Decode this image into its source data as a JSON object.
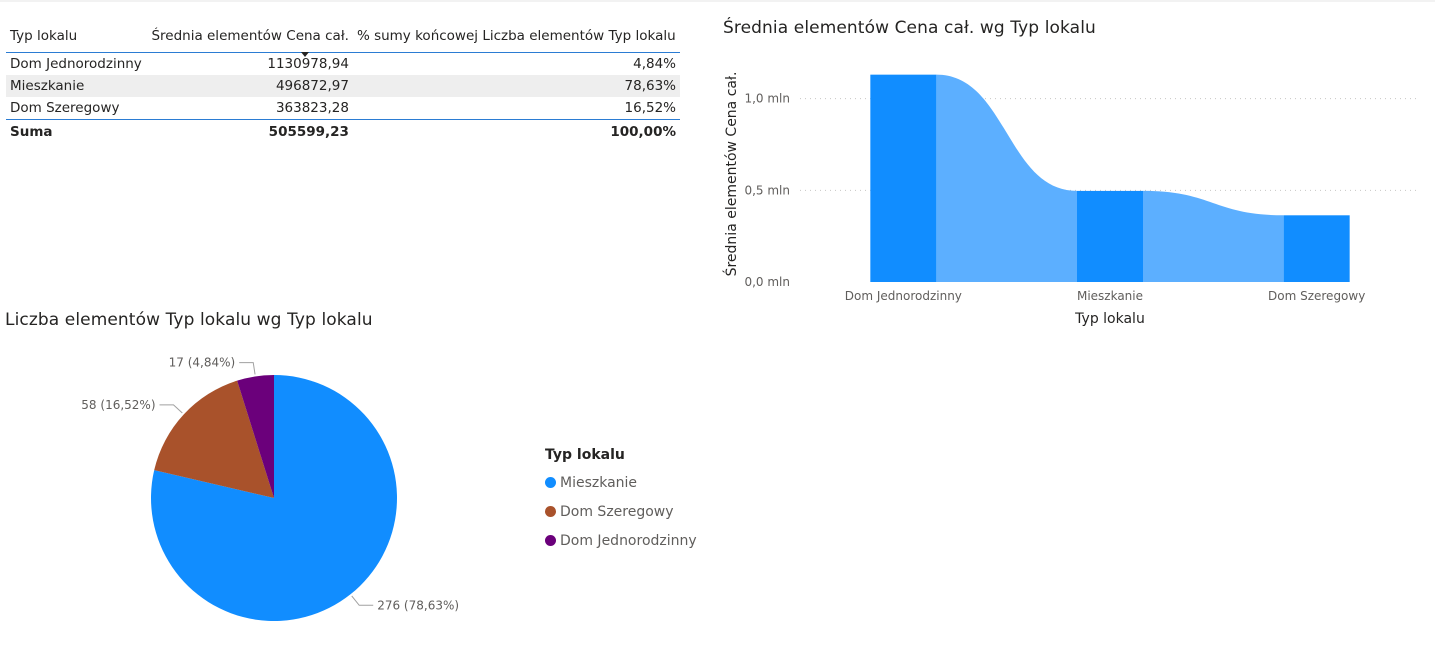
{
  "table": {
    "headers": [
      "Typ lokalu",
      "Średnia elementów Cena cał.",
      "% sumy końcowej Liczba elementów Typ lokalu"
    ],
    "rows": [
      {
        "name": "Dom Jednorodzinny",
        "avg": "1130978,94",
        "pct": "4,84%"
      },
      {
        "name": "Mieszkanie",
        "avg": "496872,97",
        "pct": "78,63%"
      },
      {
        "name": "Dom Szeregowy",
        "avg": "363823,28",
        "pct": "16,52%"
      }
    ],
    "total": {
      "name": "Suma",
      "avg": "505599,23",
      "pct": "100,00%"
    }
  },
  "chart_data": [
    {
      "type": "bar",
      "subtype": "ribbon",
      "title": "Średnia elementów Cena cał. wg Typ lokalu",
      "xlabel": "Typ lokalu",
      "ylabel": "Średnia elementów Cena cał.",
      "categories": [
        "Dom Jednorodzinny",
        "Mieszkanie",
        "Dom Szeregowy"
      ],
      "values": [
        1130978.94,
        496872.97,
        363823.28
      ],
      "ylim": [
        0,
        1200000
      ],
      "yticks": [
        {
          "value": 0,
          "label": "0,0 mln"
        },
        {
          "value": 500000,
          "label": "0,5 mln"
        },
        {
          "value": 1000000,
          "label": "1,0 mln"
        }
      ],
      "grid": true,
      "colors": {
        "bar": "#118dff",
        "ribbon": "#5cafff"
      }
    },
    {
      "type": "pie",
      "title": "Liczba elementów Typ lokalu wg Typ lokalu",
      "legend_title": "Typ lokalu",
      "legend_position": "right",
      "slices": [
        {
          "name": "Mieszkanie",
          "value": 276,
          "label": "276 (78,63%)",
          "color": "#118dff"
        },
        {
          "name": "Dom Szeregowy",
          "value": 58,
          "label": "58 (16,52%)",
          "color": "#a9522b"
        },
        {
          "name": "Dom Jednorodzinny",
          "value": 17,
          "label": "17 (4,84%)",
          "color": "#6b007b"
        }
      ]
    }
  ]
}
